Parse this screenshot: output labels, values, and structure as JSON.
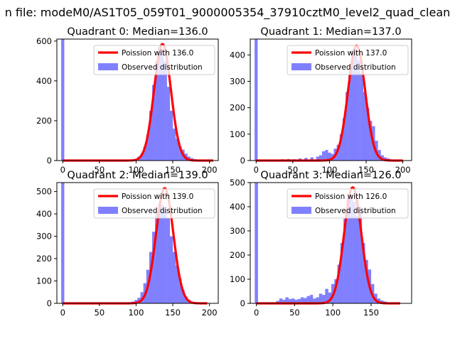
{
  "figure": {
    "suptitle": "n file: modeM0/AS1T05_059T01_9000005354_37910cztM0_level2_quad_clean",
    "colors": {
      "hist": "#8080ff",
      "fit": "#ff0000",
      "fit_alpha": "#ff8080"
    }
  },
  "chart_data": [
    {
      "type": "bar",
      "title": "Quadrant 0: Median=136.0",
      "xlim": [
        -8,
        212
      ],
      "ylim": [
        0,
        610
      ],
      "xticks": [
        0,
        50,
        100,
        150,
        200
      ],
      "yticks": [
        0,
        200,
        400,
        600
      ],
      "legend": {
        "placement": "top-right",
        "entries": [
          "Poission with 136.0",
          "Observed distribution"
        ]
      },
      "grid": false,
      "bin_width": 4.2,
      "spike": {
        "x": 0,
        "value": 610
      },
      "fit_mean": 136,
      "fit_peak": 585,
      "fit_sigma": 11.5,
      "fit_range": [
        0,
        205
      ],
      "bins_x": [
        88,
        92,
        96,
        100,
        104,
        108,
        112,
        116,
        120,
        124,
        128,
        132,
        136,
        140,
        144,
        148,
        152,
        156,
        160,
        164,
        168,
        172,
        176,
        180,
        184,
        188,
        192,
        196,
        200
      ],
      "bins_y": [
        2,
        3,
        5,
        8,
        20,
        35,
        70,
        130,
        250,
        380,
        500,
        570,
        560,
        500,
        370,
        250,
        160,
        110,
        70,
        55,
        35,
        20,
        12,
        8,
        5,
        3,
        2,
        2,
        1
      ]
    },
    {
      "type": "bar",
      "title": "Quadrant 1: Median=137.0",
      "xlim": [
        -8,
        212
      ],
      "ylim": [
        0,
        460
      ],
      "xticks": [
        0,
        50,
        100,
        150,
        200
      ],
      "yticks": [
        0,
        100,
        200,
        300,
        400
      ],
      "legend": {
        "placement": "top-right",
        "entries": [
          "Poission with 137.0",
          "Observed distribution"
        ]
      },
      "grid": false,
      "bin_width": 4.2,
      "spike": {
        "x": 0,
        "value": 460
      },
      "fit_mean": 137,
      "fit_peak": 435,
      "fit_sigma": 11.7,
      "fit_range": [
        0,
        200
      ],
      "bins_x": [
        20,
        28,
        36,
        44,
        52,
        60,
        68,
        76,
        84,
        88,
        92,
        96,
        100,
        104,
        108,
        112,
        116,
        120,
        124,
        128,
        132,
        136,
        140,
        144,
        148,
        152,
        156,
        160,
        164,
        168,
        172,
        176,
        180,
        184,
        188
      ],
      "bins_y": [
        3,
        4,
        5,
        6,
        5,
        8,
        10,
        12,
        15,
        20,
        35,
        40,
        30,
        25,
        45,
        60,
        100,
        160,
        260,
        340,
        420,
        420,
        380,
        330,
        260,
        200,
        150,
        130,
        75,
        40,
        20,
        12,
        8,
        5,
        3
      ]
    },
    {
      "type": "bar",
      "title": "Quadrant 2: Median=139.0",
      "xlim": [
        -8,
        212
      ],
      "ylim": [
        0,
        540
      ],
      "xticks": [
        0,
        50,
        100,
        150,
        200
      ],
      "yticks": [
        0,
        100,
        200,
        300,
        400,
        500
      ],
      "legend": {
        "placement": "top-right",
        "entries": [
          "Poission with 139.0",
          "Observed distribution"
        ]
      },
      "grid": false,
      "bin_width": 4.2,
      "spike": {
        "x": 0,
        "value": 540
      },
      "fit_mean": 139,
      "fit_peak": 515,
      "fit_sigma": 11.8,
      "fit_range": [
        0,
        197
      ],
      "bins_x": [
        88,
        92,
        96,
        100,
        104,
        108,
        112,
        116,
        120,
        124,
        128,
        132,
        136,
        140,
        144,
        148,
        152,
        156,
        160,
        164,
        168,
        172,
        176,
        180,
        184
      ],
      "bins_y": [
        3,
        5,
        8,
        15,
        25,
        50,
        90,
        150,
        230,
        320,
        400,
        450,
        440,
        420,
        380,
        300,
        230,
        170,
        110,
        60,
        30,
        15,
        8,
        4,
        2
      ]
    },
    {
      "type": "bar",
      "title": "Quadrant 3: Median=126.0",
      "xlim": [
        -8,
        203
      ],
      "ylim": [
        0,
        500
      ],
      "xticks": [
        0,
        50,
        100,
        150
      ],
      "yticks": [
        0,
        100,
        200,
        300,
        400,
        500
      ],
      "legend": {
        "placement": "top-right",
        "entries": [
          "Poission with 126.0",
          "Observed distribution"
        ]
      },
      "grid": false,
      "bin_width": 4.2,
      "spike": {
        "x": 0,
        "value": 500
      },
      "fit_mean": 126,
      "fit_peak": 480,
      "fit_sigma": 11.2,
      "fit_range": [
        0,
        188
      ],
      "bins_x": [
        28,
        32,
        36,
        40,
        44,
        48,
        52,
        56,
        60,
        64,
        68,
        72,
        76,
        80,
        84,
        88,
        92,
        96,
        100,
        104,
        108,
        112,
        116,
        120,
        124,
        128,
        132,
        136,
        140,
        144,
        148,
        152,
        156,
        160,
        164,
        168
      ],
      "bins_y": [
        10,
        20,
        15,
        25,
        18,
        20,
        15,
        18,
        25,
        22,
        30,
        35,
        20,
        25,
        40,
        35,
        60,
        45,
        80,
        100,
        160,
        250,
        350,
        440,
        450,
        420,
        360,
        400,
        250,
        180,
        140,
        80,
        40,
        20,
        12,
        8
      ]
    }
  ]
}
